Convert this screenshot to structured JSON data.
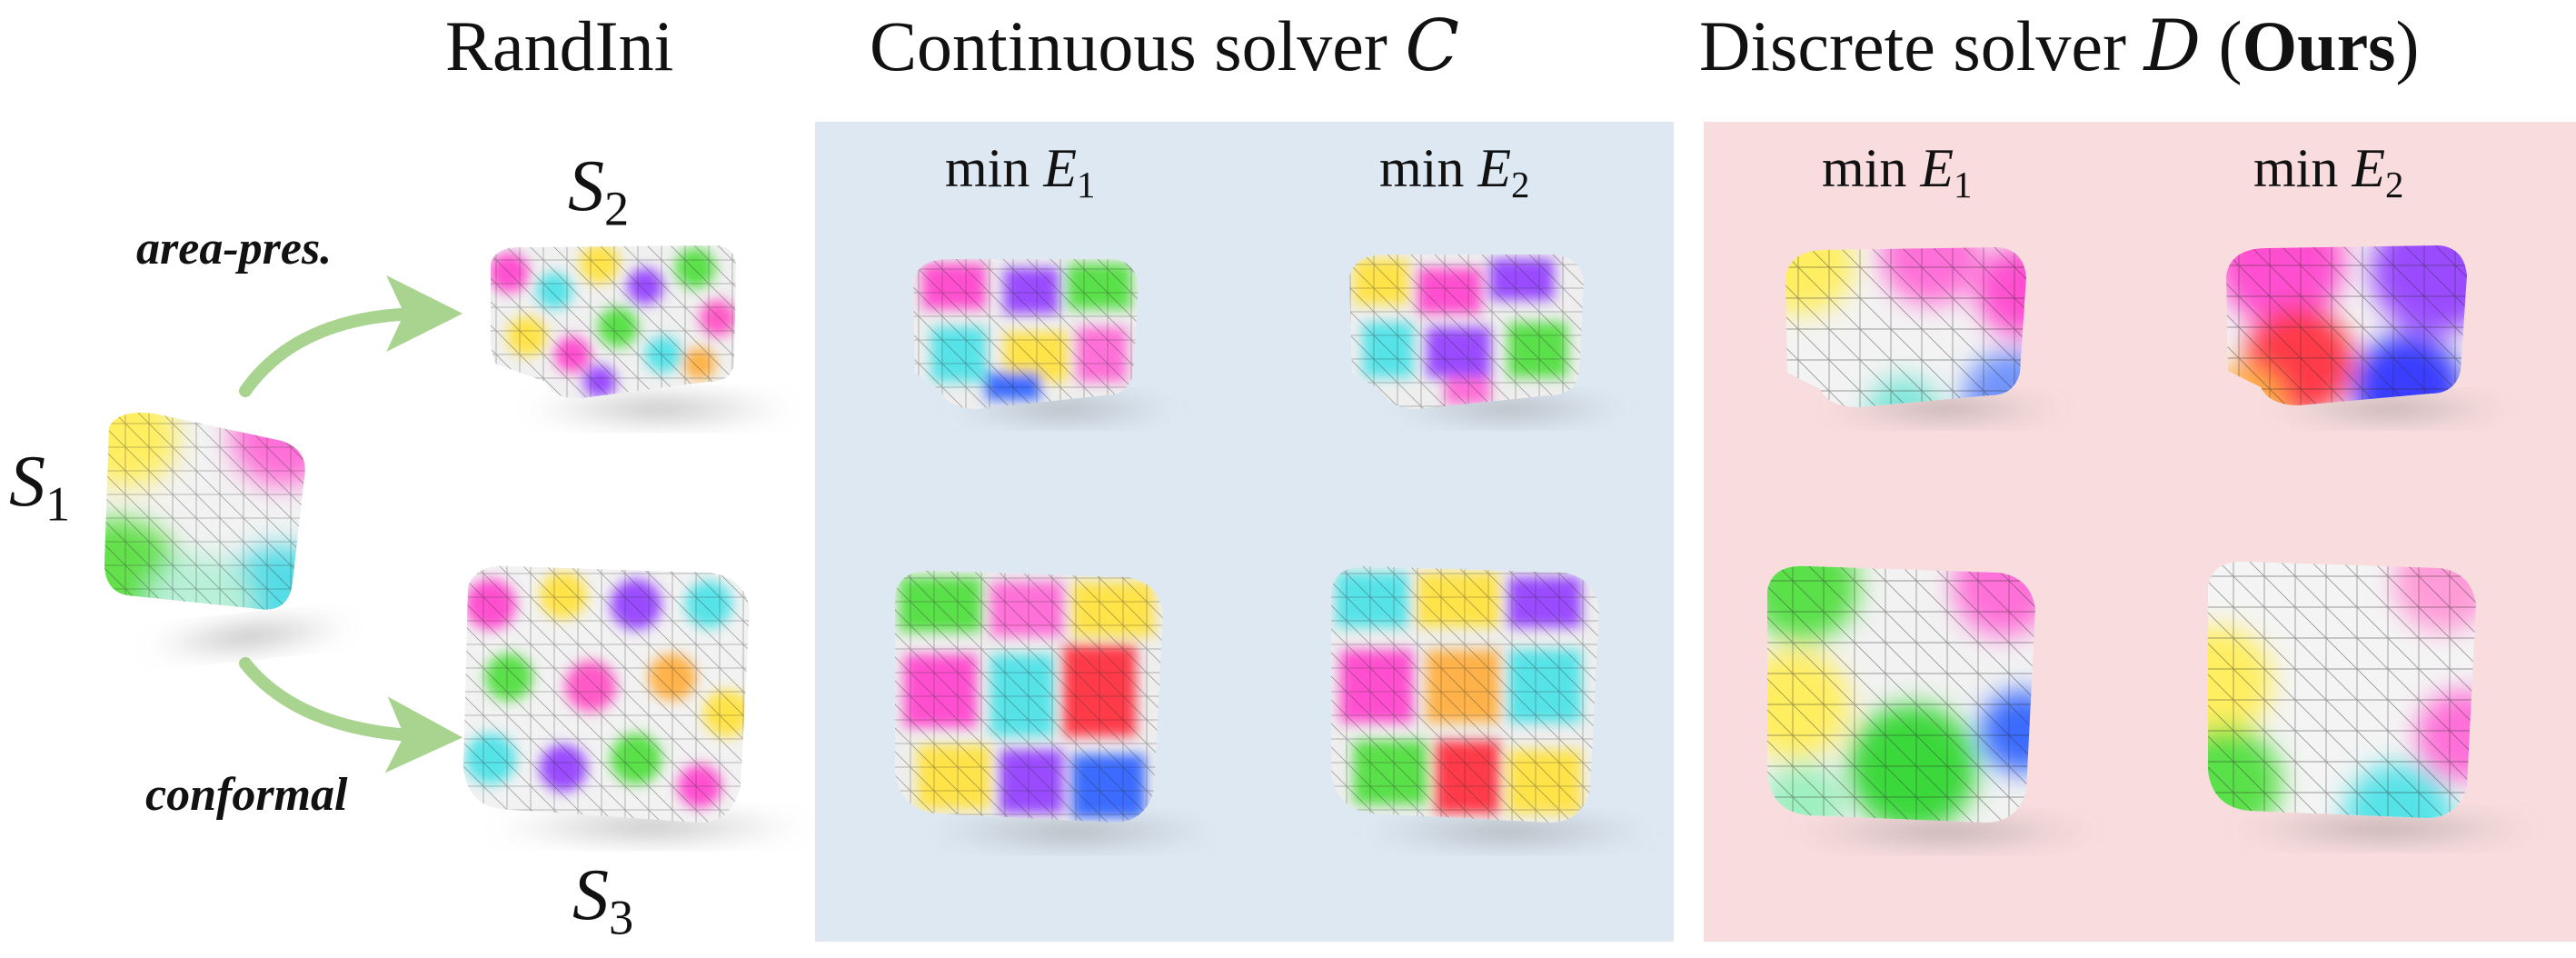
{
  "headers": {
    "randini": "RandIni",
    "continuous_text": "Continuous solver ",
    "continuous_symbol": "C",
    "discrete_text": "Discrete solver ",
    "discrete_symbol": "D",
    "discrete_paren_open": " (",
    "discrete_ours": "Ours",
    "discrete_paren_close": ")"
  },
  "energy": {
    "min_word": "min ",
    "e_letter": "E",
    "sub1": "1",
    "sub2": "2"
  },
  "shapes": {
    "s_letter": "S",
    "s1_sub": "1",
    "s2_sub": "2",
    "s3_sub": "3"
  },
  "arrows": {
    "top_label": "area-pres.",
    "bottom_label": "conformal",
    "color": "#a9d48f"
  },
  "colors": {
    "continuous_panel": "#dde8f3",
    "discrete_panel": "#f9dcdd"
  }
}
